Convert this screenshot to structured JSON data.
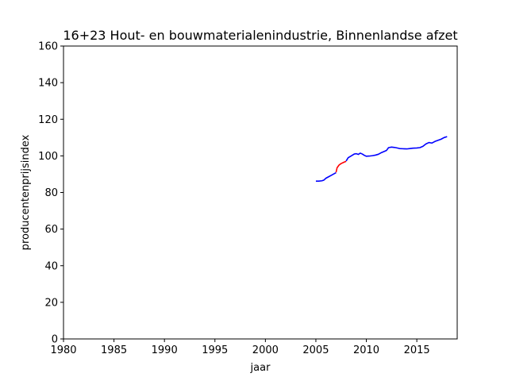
{
  "chart_data": {
    "type": "line",
    "title": "16+23 Hout- en bouwmaterialenindustrie, Binnenlandse afzet",
    "xlabel": "jaar",
    "ylabel": "producentenprijsindex",
    "xlim": [
      1980,
      2019
    ],
    "ylim": [
      0,
      160
    ],
    "xticks": [
      1980,
      1985,
      1990,
      1995,
      2000,
      2005,
      2010,
      2015
    ],
    "yticks": [
      0,
      20,
      40,
      60,
      80,
      100,
      120,
      140,
      160
    ],
    "grid": false,
    "series": [
      {
        "color": "#0000ff",
        "points": [
          [
            2005.0,
            86.2
          ],
          [
            2005.3,
            86.2
          ],
          [
            2005.6,
            86.4
          ],
          [
            2005.8,
            86.8
          ],
          [
            2006.0,
            87.8
          ],
          [
            2006.2,
            88.4
          ],
          [
            2006.5,
            89.3
          ],
          [
            2006.8,
            90.2
          ],
          [
            2007.0,
            90.8
          ]
        ]
      },
      {
        "color": "#ff0000",
        "points": [
          [
            2007.0,
            91.0
          ],
          [
            2007.1,
            93.5
          ],
          [
            2007.3,
            95.0
          ],
          [
            2007.5,
            95.8
          ],
          [
            2007.8,
            96.6
          ],
          [
            2008.0,
            97.0
          ]
        ]
      },
      {
        "color": "#0000ff",
        "points": [
          [
            2008.0,
            97.2
          ],
          [
            2008.2,
            99.0
          ],
          [
            2008.5,
            100.0
          ],
          [
            2008.8,
            101.0
          ],
          [
            2009.0,
            101.2
          ],
          [
            2009.2,
            100.8
          ],
          [
            2009.4,
            101.5
          ],
          [
            2009.6,
            101.0
          ],
          [
            2009.8,
            100.3
          ],
          [
            2010.0,
            99.8
          ],
          [
            2010.3,
            99.9
          ],
          [
            2010.6,
            100.1
          ],
          [
            2010.9,
            100.4
          ],
          [
            2011.2,
            100.9
          ],
          [
            2011.5,
            101.8
          ],
          [
            2011.8,
            102.5
          ],
          [
            2012.0,
            103.0
          ],
          [
            2012.2,
            104.5
          ],
          [
            2012.5,
            104.8
          ],
          [
            2012.8,
            104.6
          ],
          [
            2013.0,
            104.4
          ],
          [
            2013.3,
            104.0
          ],
          [
            2013.6,
            103.9
          ],
          [
            2014.0,
            103.8
          ],
          [
            2014.3,
            104.0
          ],
          [
            2014.6,
            104.2
          ],
          [
            2015.0,
            104.3
          ],
          [
            2015.3,
            104.5
          ],
          [
            2015.6,
            105.2
          ],
          [
            2015.9,
            106.5
          ],
          [
            2016.2,
            107.3
          ],
          [
            2016.5,
            107.0
          ],
          [
            2016.8,
            107.9
          ],
          [
            2017.1,
            108.5
          ],
          [
            2017.4,
            109.1
          ],
          [
            2017.7,
            110.0
          ],
          [
            2018.0,
            110.5
          ]
        ]
      }
    ]
  }
}
